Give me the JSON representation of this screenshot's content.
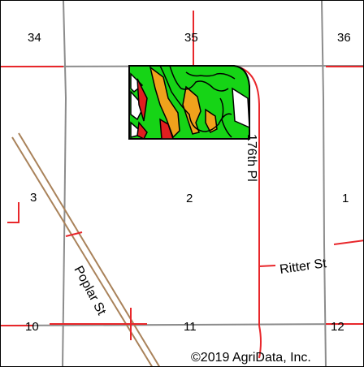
{
  "sections": [
    {
      "number": "34"
    },
    {
      "number": "35"
    },
    {
      "number": "36"
    },
    {
      "number": "3"
    },
    {
      "number": "2"
    },
    {
      "number": "1"
    },
    {
      "number": "10"
    },
    {
      "number": "11"
    },
    {
      "number": "12"
    }
  ],
  "roads": {
    "road_176th": "176th Pl",
    "ritter": "Ritter St",
    "poplar": "Poplar St"
  },
  "copyright": "©2019 AgriData, Inc.",
  "colors": {
    "section_line": "#8c8c8c",
    "road": "#e8272b",
    "railway": "#a9825a",
    "soil_green": "#16d416",
    "soil_orange": "#f0a21c",
    "soil_red": "#e01f1f",
    "field_outline": "#000000"
  }
}
